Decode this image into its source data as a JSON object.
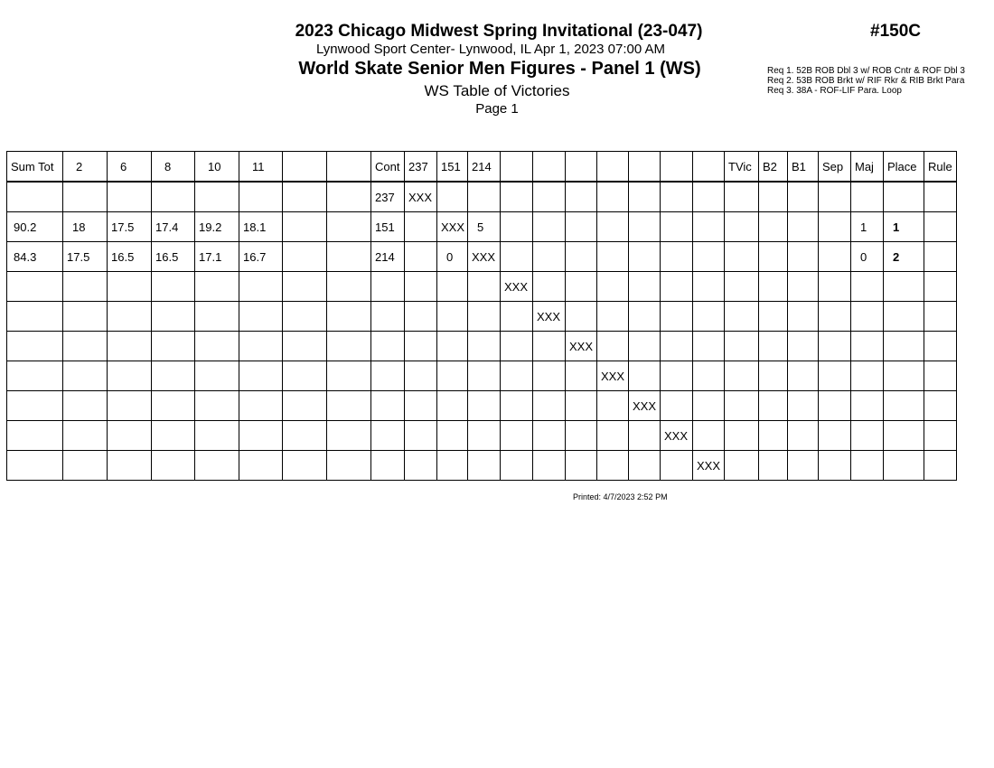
{
  "header": {
    "title": "2023 Chicago Midwest Spring Invitational (23-047)",
    "venue": "Lynwood Sport Center- Lynwood, IL  Apr 1, 2023  07:00 AM",
    "event": "World Skate Senior Men Figures - Panel 1 (WS)",
    "report": "WS Table of Victories",
    "page": "Page 1",
    "event_number": "#150C"
  },
  "requirements": [
    "Req  1.  52B ROB Dbl 3 w/ ROB Cntr & ROF Dbl 3",
    "Req  2.  53B ROB Brkt w/ RIF Rkr & RIB Brkt Para",
    "Req  3.  38A - ROF-LIF Para. Loop"
  ],
  "table": {
    "columns": [
      "Sum Tot",
      "2",
      "6",
      "8",
      "10",
      "11",
      "",
      "",
      "Cont",
      "237",
      "151",
      "214",
      "",
      "",
      "",
      "",
      "",
      "",
      "",
      "TVic",
      "B2",
      "B1",
      "Sep",
      "Maj",
      "Place",
      "Rule"
    ],
    "rows": [
      [
        "",
        "",
        "",
        "",
        "",
        "",
        "",
        "",
        "237",
        "XXX",
        "",
        "",
        "",
        "",
        "",
        "",
        "",
        "",
        "",
        "",
        "",
        "",
        "",
        "",
        "",
        ""
      ],
      [
        "90.2",
        "18",
        "17.5",
        "17.4",
        "19.2",
        "18.1",
        "",
        "",
        "151",
        "",
        "XXX",
        "5",
        "",
        "",
        "",
        "",
        "",
        "",
        "",
        "",
        "",
        "",
        "",
        "1",
        "1",
        ""
      ],
      [
        "84.3",
        "17.5",
        "16.5",
        "16.5",
        "17.1",
        "16.7",
        "",
        "",
        "214",
        "",
        "0",
        "XXX",
        "",
        "",
        "",
        "",
        "",
        "",
        "",
        "",
        "",
        "",
        "",
        "0",
        "2",
        ""
      ],
      [
        "",
        "",
        "",
        "",
        "",
        "",
        "",
        "",
        "",
        "",
        "",
        "",
        "XXX",
        "",
        "",
        "",
        "",
        "",
        "",
        "",
        "",
        "",
        "",
        "",
        "",
        ""
      ],
      [
        "",
        "",
        "",
        "",
        "",
        "",
        "",
        "",
        "",
        "",
        "",
        "",
        "",
        "XXX",
        "",
        "",
        "",
        "",
        "",
        "",
        "",
        "",
        "",
        "",
        "",
        ""
      ],
      [
        "",
        "",
        "",
        "",
        "",
        "",
        "",
        "",
        "",
        "",
        "",
        "",
        "",
        "",
        "XXX",
        "",
        "",
        "",
        "",
        "",
        "",
        "",
        "",
        "",
        "",
        ""
      ],
      [
        "",
        "",
        "",
        "",
        "",
        "",
        "",
        "",
        "",
        "",
        "",
        "",
        "",
        "",
        "",
        "XXX",
        "",
        "",
        "",
        "",
        "",
        "",
        "",
        "",
        "",
        ""
      ],
      [
        "",
        "",
        "",
        "",
        "",
        "",
        "",
        "",
        "",
        "",
        "",
        "",
        "",
        "",
        "",
        "",
        "XXX",
        "",
        "",
        "",
        "",
        "",
        "",
        "",
        "",
        ""
      ],
      [
        "",
        "",
        "",
        "",
        "",
        "",
        "",
        "",
        "",
        "",
        "",
        "",
        "",
        "",
        "",
        "",
        "",
        "XXX",
        "",
        "",
        "",
        "",
        "",
        "",
        "",
        ""
      ],
      [
        "",
        "",
        "",
        "",
        "",
        "",
        "",
        "",
        "",
        "",
        "",
        "",
        "",
        "",
        "",
        "",
        "",
        "",
        "XXX",
        "",
        "",
        "",
        "",
        "",
        "",
        ""
      ]
    ]
  },
  "footer": {
    "printed": "Printed:  4/7/2023  2:52 PM"
  }
}
